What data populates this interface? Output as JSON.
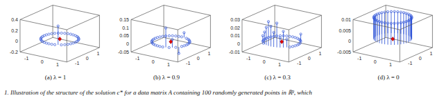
{
  "chart_data": [
    {
      "type": "stem3",
      "title": "(a) λ = 1",
      "color": "#2a4fd6",
      "x": [
        1,
        0.98,
        0.94,
        0.87,
        0.77,
        0.64,
        0.5,
        0.34,
        0.17,
        0,
        -0.17,
        -0.34,
        -0.5,
        -0.64,
        -0.77,
        -0.87,
        -0.94,
        -0.98,
        -1,
        -0.98,
        -0.94,
        -0.87,
        -0.77,
        -0.64,
        -0.5,
        -0.34,
        -0.17,
        0,
        0.17,
        0.34,
        0.5,
        0.64,
        0.77,
        0.87,
        0.94,
        0.98
      ],
      "y": [
        0,
        0.17,
        0.34,
        0.5,
        0.64,
        0.77,
        0.87,
        0.94,
        0.98,
        1,
        0.98,
        0.94,
        0.87,
        0.77,
        0.64,
        0.5,
        0.34,
        0.17,
        0,
        -0.17,
        -0.34,
        -0.5,
        -0.64,
        -0.77,
        -0.87,
        -0.94,
        -0.98,
        -1,
        -0.98,
        -0.94,
        -0.87,
        -0.77,
        -0.64,
        -0.5,
        -0.34,
        -0.17
      ],
      "z": [
        0,
        0,
        0,
        0,
        0,
        0,
        0,
        0,
        0,
        0,
        0,
        0,
        0,
        0,
        0,
        0,
        0,
        0,
        0,
        0,
        0,
        0,
        0,
        0,
        0,
        0,
        0,
        0,
        0,
        0,
        0.35,
        0,
        0,
        0,
        0,
        0
      ],
      "center": {
        "x": 0,
        "y": 0,
        "z": 0
      },
      "xlim": [
        -1.5,
        1.5
      ],
      "xticks": [
        -1,
        0,
        1
      ],
      "ylim": [
        -1.5,
        1.5
      ],
      "yticks": [
        -1,
        0,
        1
      ],
      "zlim": [
        -0.2,
        0.4
      ],
      "zticks": [
        -0.2,
        0,
        0.2,
        0.4
      ]
    },
    {
      "type": "stem3",
      "title": "(b) λ = 0.9",
      "color": "#2a4fd6",
      "x": [
        1,
        0.98,
        0.94,
        0.87,
        0.77,
        0.64,
        0.5,
        0.34,
        0.17,
        0,
        -0.17,
        -0.34,
        -0.5,
        -0.64,
        -0.77,
        -0.87,
        -0.94,
        -0.98,
        -1,
        -0.98,
        -0.94,
        -0.87,
        -0.77,
        -0.64,
        -0.5,
        -0.34,
        -0.17,
        0,
        0.17,
        0.34,
        0.5,
        0.64,
        0.77,
        0.87,
        0.94,
        0.98
      ],
      "y": [
        0,
        0.17,
        0.34,
        0.5,
        0.64,
        0.77,
        0.87,
        0.94,
        0.98,
        1,
        0.98,
        0.94,
        0.87,
        0.77,
        0.64,
        0.5,
        0.34,
        0.17,
        0,
        -0.17,
        -0.34,
        -0.5,
        -0.64,
        -0.77,
        -0.87,
        -0.94,
        -0.98,
        -1,
        -0.98,
        -0.94,
        -0.87,
        -0.77,
        -0.64,
        -0.5,
        -0.34,
        -0.17
      ],
      "z": [
        0,
        0,
        0,
        0,
        0,
        0,
        0,
        0,
        0.03,
        0,
        0,
        0,
        0,
        0,
        0,
        0,
        0,
        0,
        0,
        0,
        0,
        0,
        0,
        0,
        0,
        0,
        0,
        0,
        0,
        0.12,
        0,
        0.05,
        0,
        -0.04,
        0,
        0
      ],
      "center": {
        "x": 0,
        "y": 0,
        "z": 0
      },
      "xlim": [
        -1.5,
        1.5
      ],
      "xticks": [
        -1,
        0,
        1
      ],
      "ylim": [
        -1.5,
        1.5
      ],
      "yticks": [
        -1,
        0,
        1
      ],
      "zlim": [
        -0.05,
        0.15
      ],
      "zticks": [
        -0.05,
        0,
        0.05,
        0.1,
        0.15
      ]
    },
    {
      "type": "stem3",
      "title": "(c) λ = 0.3",
      "color": "#2a4fd6",
      "x": [
        1,
        0.98,
        0.94,
        0.87,
        0.77,
        0.64,
        0.5,
        0.34,
        0.17,
        0,
        -0.17,
        -0.34,
        -0.5,
        -0.64,
        -0.77,
        -0.87,
        -0.94,
        -0.98,
        -1,
        -0.98,
        -0.94,
        -0.87,
        -0.77,
        -0.64,
        -0.5,
        -0.34,
        -0.17,
        0,
        0.17,
        0.34,
        0.5,
        0.64,
        0.77,
        0.87,
        0.94,
        0.98
      ],
      "y": [
        0,
        0.17,
        0.34,
        0.5,
        0.64,
        0.77,
        0.87,
        0.94,
        0.98,
        1,
        0.98,
        0.94,
        0.87,
        0.77,
        0.64,
        0.5,
        0.34,
        0.17,
        0,
        -0.17,
        -0.34,
        -0.5,
        -0.64,
        -0.77,
        -0.87,
        -0.94,
        -0.98,
        -1,
        -0.98,
        -0.94,
        -0.87,
        -0.77,
        -0.64,
        -0.5,
        -0.34,
        -0.17
      ],
      "z": [
        0,
        0,
        0,
        0.01,
        0,
        0,
        0,
        0,
        0,
        0,
        0,
        0,
        0,
        0,
        0,
        0,
        0,
        0,
        0,
        0,
        0,
        0,
        0.008,
        0,
        0.015,
        0.022,
        0.03,
        0.025,
        0.018,
        0.03,
        0.012,
        0.02,
        0.01,
        0,
        0,
        0
      ],
      "center": {
        "x": 0,
        "y": 0,
        "z": 0
      },
      "xlim": [
        -1.5,
        1.5
      ],
      "xticks": [
        -1,
        0,
        1
      ],
      "ylim": [
        -1.5,
        1.5
      ],
      "yticks": [
        -1,
        0,
        1
      ],
      "zlim": [
        -0.01,
        0.03
      ],
      "zticks": [
        -0.01,
        0,
        0.01,
        0.02,
        0.03
      ]
    },
    {
      "type": "stem3",
      "title": "(d) λ = 0",
      "color": "#2a4fd6",
      "x": [
        1,
        0.98,
        0.94,
        0.87,
        0.77,
        0.64,
        0.5,
        0.34,
        0.17,
        0,
        -0.17,
        -0.34,
        -0.5,
        -0.64,
        -0.77,
        -0.87,
        -0.94,
        -0.98,
        -1,
        -0.98,
        -0.94,
        -0.87,
        -0.77,
        -0.64,
        -0.5,
        -0.34,
        -0.17,
        0,
        0.17,
        0.34,
        0.5,
        0.64,
        0.77,
        0.87,
        0.94,
        0.98
      ],
      "y": [
        0,
        0.17,
        0.34,
        0.5,
        0.64,
        0.77,
        0.87,
        0.94,
        0.98,
        1,
        0.98,
        0.94,
        0.87,
        0.77,
        0.64,
        0.5,
        0.34,
        0.17,
        0,
        -0.17,
        -0.34,
        -0.5,
        -0.64,
        -0.77,
        -0.87,
        -0.94,
        -0.98,
        -1,
        -0.98,
        -0.94,
        -0.87,
        -0.77,
        -0.64,
        -0.5,
        -0.34,
        -0.17
      ],
      "z": [
        0.01,
        0.01,
        0.01,
        0.01,
        0.01,
        0.01,
        0.01,
        0.01,
        0.01,
        0.01,
        0.01,
        0.01,
        0.01,
        0.01,
        0.01,
        0.01,
        0.01,
        0.01,
        0.01,
        0.01,
        0.01,
        0.01,
        0.01,
        0.01,
        0.01,
        0.01,
        0.01,
        0.01,
        0.01,
        0.01,
        0.01,
        0.01,
        0.01,
        0.01,
        0.01,
        0.01
      ],
      "center": {
        "x": 0,
        "y": 0,
        "z": 0
      },
      "xlim": [
        -1.5,
        1.5
      ],
      "xticks": [
        -1,
        0,
        1
      ],
      "ylim": [
        -1.5,
        1.5
      ],
      "yticks": [
        -1,
        0,
        1
      ],
      "zlim": [
        -0.005,
        0.01
      ],
      "zticks": [
        -0.005,
        0,
        0.005,
        0.01
      ]
    }
  ],
  "caption": "1. Illustration of the structure of the solution c* for a data matrix A containing 100 randomly generated points in ℝ², which"
}
